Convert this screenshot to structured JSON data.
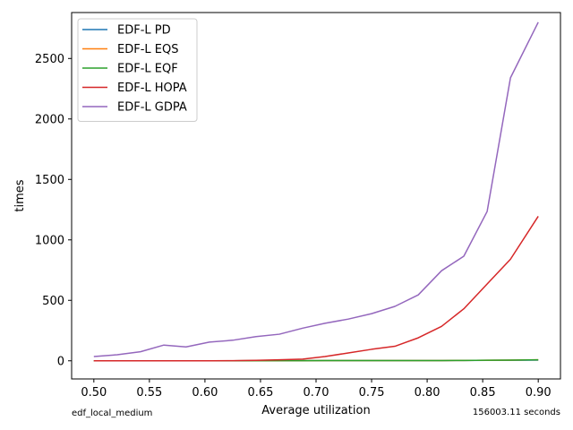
{
  "chart_data": {
    "type": "line",
    "xlabel": "Average utilization",
    "ylabel": "times",
    "xlim": [
      0.48,
      0.92
    ],
    "ylim": [
      -150,
      2880
    ],
    "xticks": [
      0.5,
      0.55,
      0.6,
      0.65,
      0.7,
      0.75,
      0.8,
      0.85,
      0.9
    ],
    "xtick_labels": [
      "0.50",
      "0.55",
      "0.60",
      "0.65",
      "0.70",
      "0.75",
      "0.80",
      "0.85",
      "0.90"
    ],
    "yticks": [
      0,
      500,
      1000,
      1500,
      2000,
      2500
    ],
    "ytick_labels": [
      "0",
      "500",
      "1000",
      "1500",
      "2000",
      "2500"
    ],
    "grid": false,
    "legend_position": "top-left",
    "x": [
      0.5,
      0.521,
      0.542,
      0.563,
      0.583,
      0.604,
      0.625,
      0.646,
      0.667,
      0.688,
      0.708,
      0.729,
      0.75,
      0.771,
      0.792,
      0.813,
      0.833,
      0.854,
      0.875,
      0.9
    ],
    "series": [
      {
        "name": "EDF-L PD",
        "color": "#1f77b4",
        "values": [
          0,
          0,
          0,
          0,
          0,
          0,
          0,
          1,
          1,
          1,
          2,
          2,
          2,
          2,
          2,
          2,
          3,
          4,
          5,
          6
        ]
      },
      {
        "name": "EDF-L EQS",
        "color": "#ff7f0e",
        "values": [
          0,
          0,
          0,
          0,
          0,
          0,
          0,
          1,
          1,
          1,
          2,
          2,
          2,
          2,
          2,
          2,
          3,
          5,
          6,
          8
        ]
      },
      {
        "name": "EDF-L EQF",
        "color": "#2ca02c",
        "values": [
          0,
          0,
          0,
          0,
          0,
          0,
          0,
          1,
          1,
          1,
          2,
          2,
          2,
          2,
          2,
          2,
          3,
          5,
          6,
          8
        ]
      },
      {
        "name": "EDF-L HOPA",
        "color": "#d62728",
        "values": [
          0,
          0,
          0,
          0,
          0,
          0,
          1,
          4,
          8,
          14,
          35,
          65,
          95,
          120,
          190,
          285,
          430,
          635,
          840,
          1195
        ]
      },
      {
        "name": "EDF-L GDPA",
        "color": "#9467bd",
        "values": [
          35,
          50,
          75,
          130,
          115,
          155,
          170,
          200,
          220,
          270,
          310,
          345,
          390,
          450,
          545,
          745,
          865,
          1235,
          2340,
          2800
        ]
      }
    ]
  },
  "footer": {
    "left_note": "edf_local_medium",
    "right_note": "156003.11 seconds"
  }
}
